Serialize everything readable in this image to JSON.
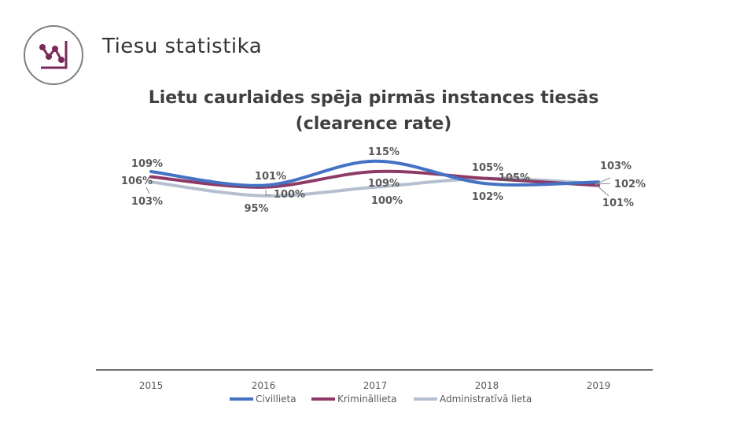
{
  "header": {
    "title": "Tiesu statistika",
    "logo_icon": "chart-trend-icon"
  },
  "colors": {
    "civil": "#4472c4",
    "criminal": "#8e3a66",
    "admin": "#b4bfcf",
    "axis": "#404040",
    "label": "#595959"
  },
  "chart_data": {
    "type": "line",
    "title": "Lietu caurlaides spēja pirmās instances tiesās",
    "subtitle": "(clearence rate)",
    "categories": [
      "2015",
      "2016",
      "2017",
      "2018",
      "2019"
    ],
    "series": [
      {
        "name": "Civillieta",
        "values": [
          109,
          101,
          115,
          102,
          103
        ],
        "labels": [
          "109%",
          "101%",
          "115%",
          "102%",
          "103%"
        ]
      },
      {
        "name": "Krimināllieta",
        "values": [
          106,
          100,
          109,
          105,
          101
        ],
        "labels": [
          "106%",
          "100%",
          "109%",
          "105%",
          "101%"
        ]
      },
      {
        "name": "Administratīvā lieta",
        "values": [
          103,
          95,
          100,
          105,
          102
        ],
        "labels": [
          "103%",
          "95%",
          "100%",
          "105%",
          "102%"
        ]
      }
    ],
    "xlabel": "",
    "ylabel": "",
    "grid": false,
    "legend": "bottom"
  }
}
